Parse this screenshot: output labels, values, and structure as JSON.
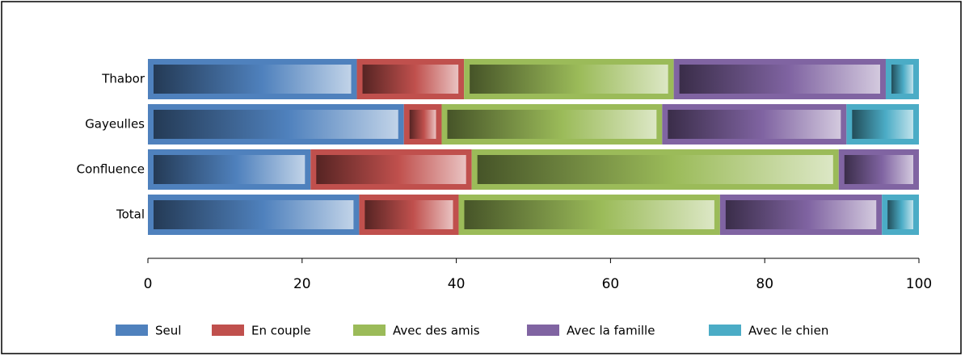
{
  "chart_data": {
    "type": "bar",
    "orientation": "horizontal",
    "stacked": true,
    "categories": [
      "Thabor",
      "Gayeulles",
      "Confluence",
      "Total"
    ],
    "series": [
      {
        "name": "Seul",
        "color": "#4f81bd",
        "values": [
          27.1,
          33.2,
          21.1,
          27.4
        ]
      },
      {
        "name": "En couple",
        "color": "#c0504d",
        "values": [
          13.9,
          4.9,
          20.9,
          12.9
        ]
      },
      {
        "name": "Avec des amis",
        "color": "#9bbb59",
        "values": [
          27.2,
          28.6,
          47.6,
          33.9
        ]
      },
      {
        "name": "Avec la famille",
        "color": "#8064a2",
        "values": [
          27.5,
          23.9,
          10.4,
          21.0
        ]
      },
      {
        "name": "Avec le chien",
        "color": "#4bacc6",
        "values": [
          4.3,
          9.4,
          0,
          4.8
        ]
      }
    ],
    "xlim": [
      0,
      100
    ],
    "xticks": [
      0,
      20,
      40,
      60,
      80,
      100
    ],
    "grid": false,
    "legend": "bottom"
  }
}
